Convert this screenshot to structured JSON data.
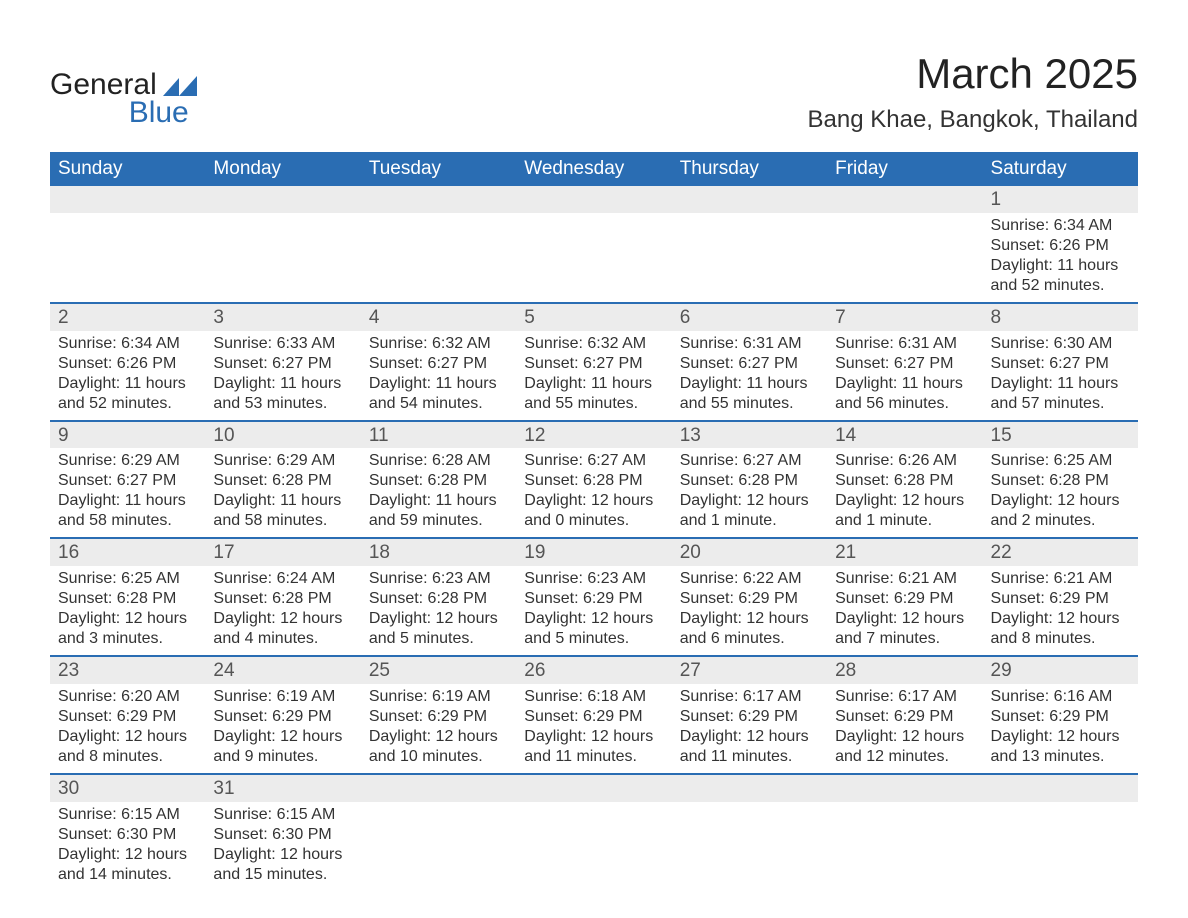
{
  "logo": {
    "line1": "General",
    "line2": "Blue",
    "color_dark": "#222222",
    "color_blue": "#2a6db3"
  },
  "title": "March 2025",
  "location": "Bang Khae, Bangkok, Thailand",
  "header_bg": "#2a6db3",
  "daynum_bg": "#ececec",
  "border_color": "#2a6db3",
  "weekdays": [
    "Sunday",
    "Monday",
    "Tuesday",
    "Wednesday",
    "Thursday",
    "Friday",
    "Saturday"
  ],
  "weeks": [
    [
      null,
      null,
      null,
      null,
      null,
      null,
      {
        "d": "1",
        "sr": "6:34 AM",
        "ss": "6:26 PM",
        "dl": "11 hours and 52 minutes."
      }
    ],
    [
      {
        "d": "2",
        "sr": "6:34 AM",
        "ss": "6:26 PM",
        "dl": "11 hours and 52 minutes."
      },
      {
        "d": "3",
        "sr": "6:33 AM",
        "ss": "6:27 PM",
        "dl": "11 hours and 53 minutes."
      },
      {
        "d": "4",
        "sr": "6:32 AM",
        "ss": "6:27 PM",
        "dl": "11 hours and 54 minutes."
      },
      {
        "d": "5",
        "sr": "6:32 AM",
        "ss": "6:27 PM",
        "dl": "11 hours and 55 minutes."
      },
      {
        "d": "6",
        "sr": "6:31 AM",
        "ss": "6:27 PM",
        "dl": "11 hours and 55 minutes."
      },
      {
        "d": "7",
        "sr": "6:31 AM",
        "ss": "6:27 PM",
        "dl": "11 hours and 56 minutes."
      },
      {
        "d": "8",
        "sr": "6:30 AM",
        "ss": "6:27 PM",
        "dl": "11 hours and 57 minutes."
      }
    ],
    [
      {
        "d": "9",
        "sr": "6:29 AM",
        "ss": "6:27 PM",
        "dl": "11 hours and 58 minutes."
      },
      {
        "d": "10",
        "sr": "6:29 AM",
        "ss": "6:28 PM",
        "dl": "11 hours and 58 minutes."
      },
      {
        "d": "11",
        "sr": "6:28 AM",
        "ss": "6:28 PM",
        "dl": "11 hours and 59 minutes."
      },
      {
        "d": "12",
        "sr": "6:27 AM",
        "ss": "6:28 PM",
        "dl": "12 hours and 0 minutes."
      },
      {
        "d": "13",
        "sr": "6:27 AM",
        "ss": "6:28 PM",
        "dl": "12 hours and 1 minute."
      },
      {
        "d": "14",
        "sr": "6:26 AM",
        "ss": "6:28 PM",
        "dl": "12 hours and 1 minute."
      },
      {
        "d": "15",
        "sr": "6:25 AM",
        "ss": "6:28 PM",
        "dl": "12 hours and 2 minutes."
      }
    ],
    [
      {
        "d": "16",
        "sr": "6:25 AM",
        "ss": "6:28 PM",
        "dl": "12 hours and 3 minutes."
      },
      {
        "d": "17",
        "sr": "6:24 AM",
        "ss": "6:28 PM",
        "dl": "12 hours and 4 minutes."
      },
      {
        "d": "18",
        "sr": "6:23 AM",
        "ss": "6:28 PM",
        "dl": "12 hours and 5 minutes."
      },
      {
        "d": "19",
        "sr": "6:23 AM",
        "ss": "6:29 PM",
        "dl": "12 hours and 5 minutes."
      },
      {
        "d": "20",
        "sr": "6:22 AM",
        "ss": "6:29 PM",
        "dl": "12 hours and 6 minutes."
      },
      {
        "d": "21",
        "sr": "6:21 AM",
        "ss": "6:29 PM",
        "dl": "12 hours and 7 minutes."
      },
      {
        "d": "22",
        "sr": "6:21 AM",
        "ss": "6:29 PM",
        "dl": "12 hours and 8 minutes."
      }
    ],
    [
      {
        "d": "23",
        "sr": "6:20 AM",
        "ss": "6:29 PM",
        "dl": "12 hours and 8 minutes."
      },
      {
        "d": "24",
        "sr": "6:19 AM",
        "ss": "6:29 PM",
        "dl": "12 hours and 9 minutes."
      },
      {
        "d": "25",
        "sr": "6:19 AM",
        "ss": "6:29 PM",
        "dl": "12 hours and 10 minutes."
      },
      {
        "d": "26",
        "sr": "6:18 AM",
        "ss": "6:29 PM",
        "dl": "12 hours and 11 minutes."
      },
      {
        "d": "27",
        "sr": "6:17 AM",
        "ss": "6:29 PM",
        "dl": "12 hours and 11 minutes."
      },
      {
        "d": "28",
        "sr": "6:17 AM",
        "ss": "6:29 PM",
        "dl": "12 hours and 12 minutes."
      },
      {
        "d": "29",
        "sr": "6:16 AM",
        "ss": "6:29 PM",
        "dl": "12 hours and 13 minutes."
      }
    ],
    [
      {
        "d": "30",
        "sr": "6:15 AM",
        "ss": "6:30 PM",
        "dl": "12 hours and 14 minutes."
      },
      {
        "d": "31",
        "sr": "6:15 AM",
        "ss": "6:30 PM",
        "dl": "12 hours and 15 minutes."
      },
      null,
      null,
      null,
      null,
      null
    ]
  ],
  "labels": {
    "sunrise": "Sunrise:",
    "sunset": "Sunset:",
    "daylight": "Daylight:"
  }
}
